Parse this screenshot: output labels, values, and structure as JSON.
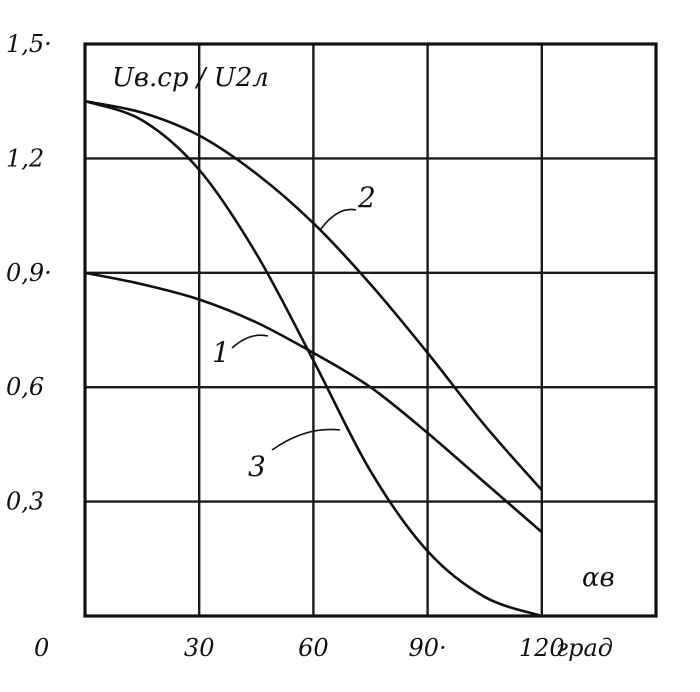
{
  "chart_data": {
    "type": "line",
    "ylabel": "Uв.ср / U2л",
    "xlabel": "αв",
    "x_unit": "град",
    "xlim": [
      0,
      150
    ],
    "ylim": [
      0,
      1.5
    ],
    "x_ticks": [
      0,
      30,
      60,
      90,
      120
    ],
    "x_tick_labels": [
      "0",
      "30",
      "60",
      "90·",
      "120"
    ],
    "y_ticks": [
      0.3,
      0.6,
      0.9,
      1.2,
      1.5
    ],
    "y_tick_labels": [
      "0,3",
      "0,6",
      "0,9·",
      "1,2",
      "1,5·"
    ],
    "grid": true,
    "series": [
      {
        "name": "1",
        "x": [
          0,
          15,
          30,
          45,
          60,
          75,
          90,
          105,
          120
        ],
        "values": [
          0.9,
          0.87,
          0.83,
          0.77,
          0.69,
          0.6,
          0.48,
          0.35,
          0.22
        ]
      },
      {
        "name": "2",
        "x": [
          0,
          15,
          30,
          45,
          60,
          75,
          90,
          105,
          120
        ],
        "values": [
          1.35,
          1.32,
          1.26,
          1.16,
          1.03,
          0.87,
          0.69,
          0.5,
          0.33
        ]
      },
      {
        "name": "3",
        "x": [
          0,
          15,
          30,
          45,
          60,
          75,
          90,
          105,
          120
        ],
        "values": [
          1.35,
          1.3,
          1.17,
          0.95,
          0.67,
          0.38,
          0.17,
          0.05,
          0.0
        ]
      }
    ]
  }
}
